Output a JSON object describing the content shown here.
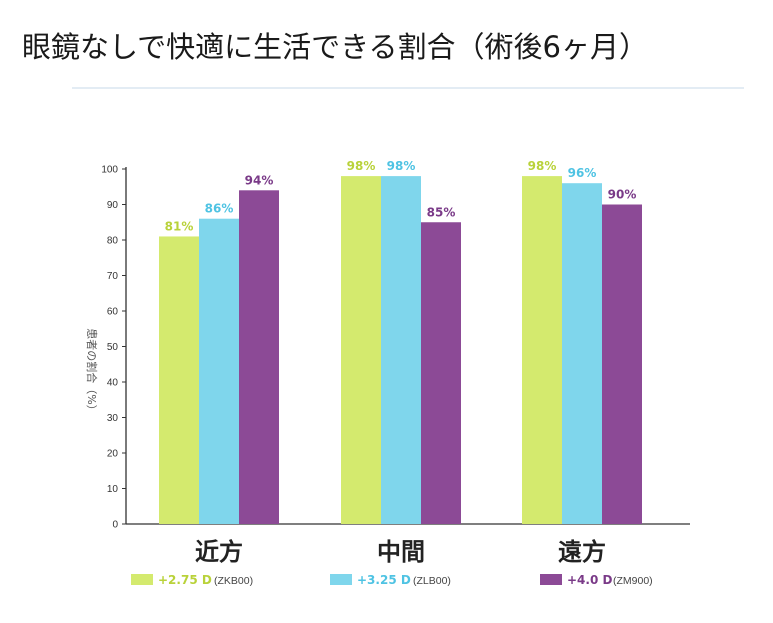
{
  "page": {
    "title": "眼鏡なしで快適に生活できる割合（術後6ヶ月）"
  },
  "colors": {
    "series1": "#d4ea6e",
    "series2": "#7fd6ec",
    "series3": "#8c4a96",
    "label1": "#b9d23a",
    "label2": "#4fc3e3",
    "label3": "#7a3a88",
    "axis": "#333333",
    "rule": "#e3ecf4"
  },
  "chart_data": {
    "type": "bar",
    "title": "",
    "xlabel": "",
    "ylabel": "患者の割合（%）",
    "ylim": [
      0,
      100
    ],
    "yticks": [
      0,
      10,
      20,
      30,
      40,
      50,
      60,
      70,
      80,
      90,
      100
    ],
    "categories": [
      "近方",
      "中間",
      "遠方"
    ],
    "series": [
      {
        "name": "+2.75 D",
        "code": "(ZKB00)",
        "values": [
          81,
          98,
          98
        ],
        "labels": [
          "81%",
          "98%",
          "98%"
        ]
      },
      {
        "name": "+3.25 D",
        "code": "(ZLB00)",
        "values": [
          86,
          98,
          96
        ],
        "labels": [
          "86%",
          "98%",
          "96%"
        ]
      },
      {
        "name": "+4.0 D",
        "code": "(ZM900)",
        "values": [
          94,
          85,
          90
        ],
        "labels": [
          "94%",
          "85%",
          "90%"
        ]
      }
    ],
    "legend_position": "bottom",
    "grid": false
  }
}
